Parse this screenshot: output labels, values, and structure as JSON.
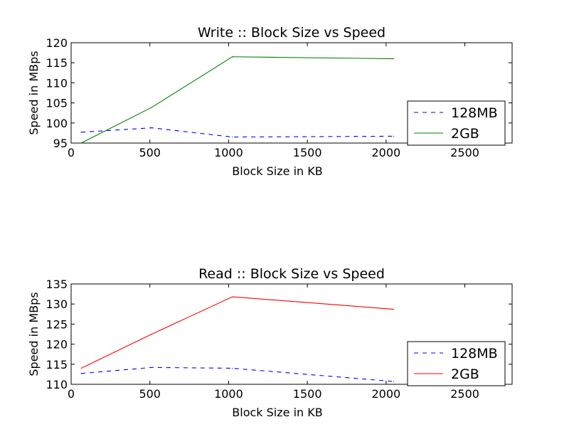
{
  "chart_data": [
    {
      "type": "line",
      "title": "Write :: Block Size vs Speed",
      "xlabel": "Block Size in KB",
      "ylabel": "Speed in MBps",
      "xlim": [
        0,
        2800
      ],
      "ylim": [
        95,
        120
      ],
      "xticks": [
        0,
        500,
        1000,
        1500,
        2000,
        2500
      ],
      "yticks": [
        95,
        100,
        105,
        110,
        115,
        120
      ],
      "grid": false,
      "legend_position": "lower-right",
      "series": [
        {
          "name": "128MB",
          "color": "#0000ff",
          "style": "dashed",
          "x": [
            64,
            512,
            1024,
            2048
          ],
          "y": [
            97.7,
            98.8,
            96.5,
            96.7
          ]
        },
        {
          "name": "2GB",
          "color": "#008000",
          "style": "solid",
          "x": [
            64,
            512,
            1024,
            2048
          ],
          "y": [
            95.0,
            103.9,
            116.5,
            116.0
          ]
        }
      ]
    },
    {
      "type": "line",
      "title": "Read :: Block Size vs Speed",
      "xlabel": "Block Size in KB",
      "ylabel": "Speed in MBps",
      "xlim": [
        0,
        2800
      ],
      "ylim": [
        110,
        135
      ],
      "xticks": [
        0,
        500,
        1000,
        1500,
        2000,
        2500
      ],
      "yticks": [
        110,
        115,
        120,
        125,
        130,
        135
      ],
      "grid": false,
      "legend_position": "lower-right",
      "series": [
        {
          "name": "128MB",
          "color": "#0000ff",
          "style": "dashed",
          "x": [
            64,
            512,
            1024,
            2048
          ],
          "y": [
            112.7,
            114.2,
            114.0,
            110.7
          ]
        },
        {
          "name": "2GB",
          "color": "#ff0000",
          "style": "solid",
          "x": [
            64,
            512,
            1024,
            2048
          ],
          "y": [
            114.0,
            122.5,
            131.8,
            128.7
          ]
        }
      ]
    }
  ]
}
